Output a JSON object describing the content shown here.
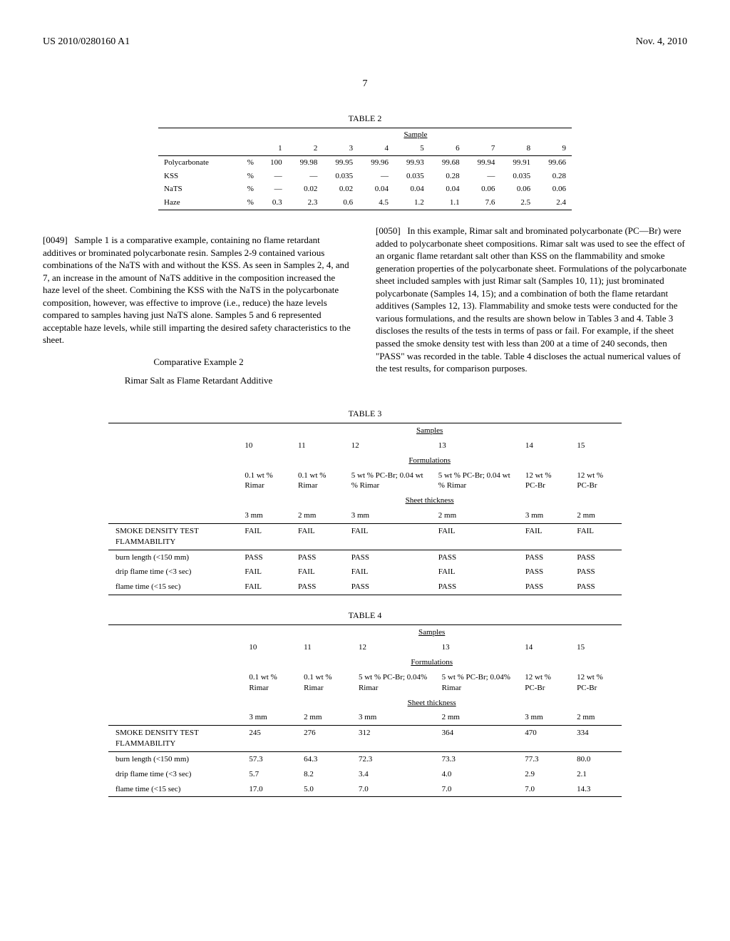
{
  "header": {
    "pub_number": "US 2010/0280160 A1",
    "date": "Nov. 4, 2010",
    "page": "7"
  },
  "table2": {
    "caption": "TABLE 2",
    "group_label": "Sample",
    "col_headers": [
      "1",
      "2",
      "3",
      "4",
      "5",
      "6",
      "7",
      "8",
      "9"
    ],
    "rows": [
      {
        "label": "Polycarbonate",
        "unit": "%",
        "vals": [
          "100",
          "99.98",
          "99.95",
          "99.96",
          "99.93",
          "99.68",
          "99.94",
          "99.91",
          "99.66"
        ]
      },
      {
        "label": "KSS",
        "unit": "%",
        "vals": [
          "—",
          "—",
          "0.035",
          "—",
          "0.035",
          "0.28",
          "—",
          "0.035",
          "0.28"
        ]
      },
      {
        "label": "NaTS",
        "unit": "%",
        "vals": [
          "—",
          "0.02",
          "0.02",
          "0.04",
          "0.04",
          "0.04",
          "0.06",
          "0.06",
          "0.06"
        ]
      },
      {
        "label": "Haze",
        "unit": "%",
        "vals": [
          "0.3",
          "2.3",
          "0.6",
          "4.5",
          "1.2",
          "1.1",
          "7.6",
          "2.5",
          "2.4"
        ]
      }
    ]
  },
  "para0049": {
    "num": "[0049]",
    "text": "Sample 1 is a comparative example, containing no flame retardant additives or brominated polycarbonate resin. Samples 2-9 contained various combinations of the NaTS with and without the KSS. As seen in Samples 2, 4, and 7, an increase in the amount of NaTS additive in the composition increased the haze level of the sheet. Combining the KSS with the NaTS in the polycarbonate composition, however, was effective to improve (i.e., reduce) the haze levels compared to samples having just NaTS alone. Samples 5 and 6 represented acceptable haze levels, while still imparting the desired safety characteristics to the sheet."
  },
  "comp2_title": "Comparative Example 2",
  "comp2_sub": "Rimar Salt as Flame Retardant Additive",
  "para0050": {
    "num": "[0050]",
    "text": "In this example, Rimar salt and brominated polycarbonate (PC—Br) were added to polycarbonate sheet compositions. Rimar salt was used to see the effect of an organic flame retardant salt other than KSS on the flammability and smoke generation properties of the polycarbonate sheet. Formulations of the polycarbonate sheet included samples with just Rimar salt (Samples 10, 11); just brominated polycarbonate (Samples 14, 15); and a combination of both the flame retardant additives (Samples 12, 13). Flammability and smoke tests were conducted for the various formulations, and the results are shown below in Tables 3 and 4. Table 3 discloses the results of the tests in terms of pass or fail. For example, if the sheet passed the smoke density test with less than 200 at a time of 240 seconds, then \"PASS\" was recorded in the table. Table 4 discloses the actual numerical values of the test results, for comparison purposes."
  },
  "table3": {
    "caption": "TABLE 3",
    "samples_label": "Samples",
    "sample_nums": [
      "10",
      "11",
      "12",
      "13",
      "14",
      "15"
    ],
    "formulations_label": "Formulations",
    "formulations": [
      "0.1 wt % Rimar",
      "0.1 wt % Rimar",
      "5 wt % PC-Br; 0.04 wt % Rimar",
      "5 wt % PC-Br; 0.04 wt % Rimar",
      "12 wt % PC-Br",
      "12 wt % PC-Br"
    ],
    "thickness_label": "Sheet thickness",
    "thickness": [
      "3 mm",
      "2 mm",
      "3 mm",
      "2 mm",
      "3 mm",
      "2 mm"
    ],
    "rows": [
      {
        "label": "SMOKE DENSITY TEST FLAMMABILITY",
        "vals": [
          "FAIL",
          "FAIL",
          "FAIL",
          "FAIL",
          "FAIL",
          "FAIL"
        ]
      },
      {
        "label": "burn length (<150 mm)",
        "vals": [
          "PASS",
          "PASS",
          "PASS",
          "PASS",
          "PASS",
          "PASS"
        ]
      },
      {
        "label": "drip flame time (<3 sec)",
        "vals": [
          "FAIL",
          "FAIL",
          "FAIL",
          "FAIL",
          "PASS",
          "PASS"
        ]
      },
      {
        "label": "flame time (<15 sec)",
        "vals": [
          "FAIL",
          "PASS",
          "PASS",
          "PASS",
          "PASS",
          "PASS"
        ]
      }
    ]
  },
  "table4": {
    "caption": "TABLE 4",
    "samples_label": "Samples",
    "sample_nums": [
      "10",
      "11",
      "12",
      "13",
      "14",
      "15"
    ],
    "formulations_label": "Formulations",
    "formulations": [
      "0.1 wt % Rimar",
      "0.1 wt % Rimar",
      "5 wt % PC-Br; 0.04% Rimar",
      "5 wt % PC-Br; 0.04% Rimar",
      "12 wt % PC-Br",
      "12 wt % PC-Br"
    ],
    "thickness_label": "Sheet thickness",
    "thickness": [
      "3 mm",
      "2 mm",
      "3 mm",
      "2 mm",
      "3 mm",
      "2 mm"
    ],
    "rows": [
      {
        "label": "SMOKE DENSITY TEST FLAMMABILITY",
        "vals": [
          "245",
          "276",
          "312",
          "364",
          "470",
          "334"
        ]
      },
      {
        "label": "burn length (<150 mm)",
        "vals": [
          "57.3",
          "64.3",
          "72.3",
          "73.3",
          "77.3",
          "80.0"
        ]
      },
      {
        "label": "drip flame time (<3 sec)",
        "vals": [
          "5.7",
          "8.2",
          "3.4",
          "4.0",
          "2.9",
          "2.1"
        ]
      },
      {
        "label": "flame time (<15 sec)",
        "vals": [
          "17.0",
          "5.0",
          "7.0",
          "7.0",
          "7.0",
          "14.3"
        ]
      }
    ]
  }
}
